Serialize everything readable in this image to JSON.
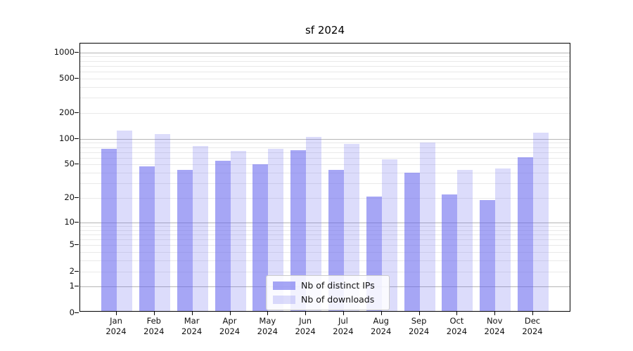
{
  "title": "sf 2024",
  "chart_data": {
    "type": "bar",
    "title": "sf 2024",
    "categories": [
      "Jan 2024",
      "Feb 2024",
      "Mar 2024",
      "Apr 2024",
      "May 2024",
      "Jun 2024",
      "Jul 2024",
      "Aug 2024",
      "Sep 2024",
      "Oct 2024",
      "Nov 2024",
      "Dec 2024"
    ],
    "series": [
      {
        "name": "Nb of distinct IPs",
        "color": "rgba(102,102,238,0.58)",
        "values": [
          76,
          48,
          43,
          55,
          50,
          74,
          43,
          21,
          40,
          22,
          19,
          61
        ]
      },
      {
        "name": "Nb of downloads",
        "color": "rgba(102,102,238,0.23)",
        "values": [
          125,
          113,
          82,
          72,
          77,
          106,
          87,
          58,
          91,
          43,
          45,
          117
        ]
      }
    ],
    "xlabel": "",
    "ylabel": "",
    "yscale": "symlog",
    "yticks": [
      0,
      1,
      2,
      5,
      10,
      20,
      50,
      100,
      200,
      500,
      1000
    ],
    "ylim": [
      0,
      1276
    ],
    "grid": true,
    "legend_position": "lower center"
  },
  "colors": {
    "grid_major": "#b6b6b6",
    "grid_minor": "#e9e9e9",
    "spine": "#000000"
  }
}
